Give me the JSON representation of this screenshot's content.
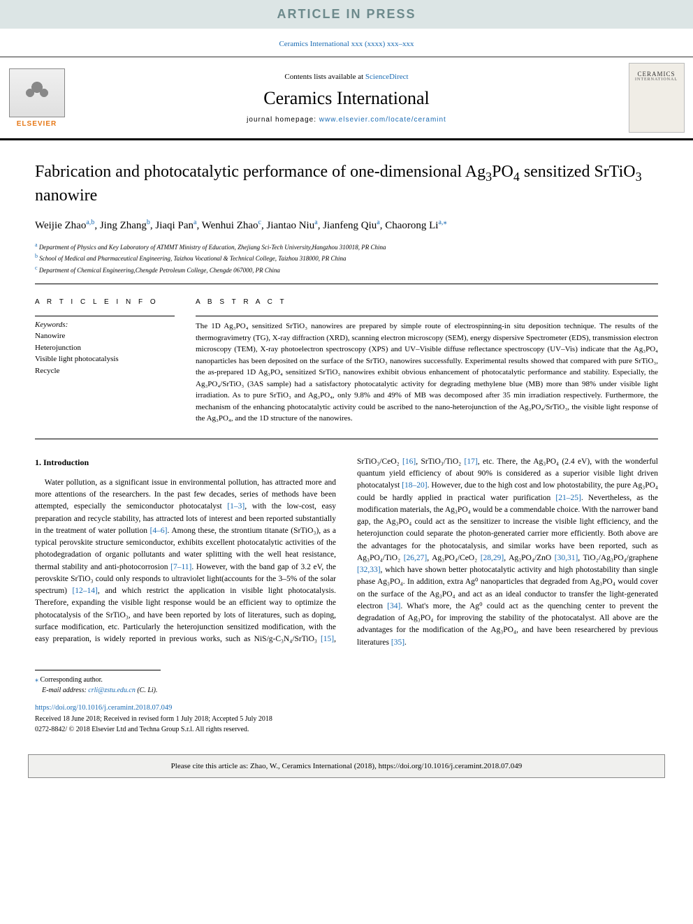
{
  "banner": {
    "text": "ARTICLE IN PRESS"
  },
  "journal_ref": "Ceramics International xxx (xxxx) xxx–xxx",
  "masthead": {
    "publisher": "ELSEVIER",
    "contents_prefix": "Contents lists available at ",
    "contents_link": "ScienceDirect",
    "journal": "Ceramics International",
    "homepage_prefix": "journal homepage: ",
    "homepage_url": "www.elsevier.com/locate/ceramint",
    "cover_line1": "CERAMICS",
    "cover_line2": "INTERNATIONAL"
  },
  "title_parts": {
    "p1": "Fabrication and photocatalytic performance of one-dimensional Ag",
    "p1_sub": "3",
    "p2": "PO",
    "p2_sub": "4",
    "p3": " sensitized SrTiO",
    "p3_sub": "3",
    "p4": " nanowire"
  },
  "authors": [
    {
      "name": "Weijie Zhao",
      "sup": "a,b"
    },
    {
      "name": "Jing Zhang",
      "sup": "b"
    },
    {
      "name": "Jiaqi Pan",
      "sup": "a"
    },
    {
      "name": "Wenhui Zhao",
      "sup": "c"
    },
    {
      "name": "Jiantao Niu",
      "sup": "a"
    },
    {
      "name": "Jianfeng Qiu",
      "sup": "a"
    },
    {
      "name": "Chaorong Li",
      "sup": "a,",
      "corr": true
    }
  ],
  "affiliations": [
    {
      "sup": "a",
      "text": "Department of Physics and Key Laboratory of ATMMT Ministry of Education, Zhejiang Sci-Tech University,Hangzhou 310018, PR China"
    },
    {
      "sup": "b",
      "text": "School of Medical and Pharmaceutical Engineering, Taizhou Vocational & Technical College, Taizhou 318000, PR China"
    },
    {
      "sup": "c",
      "text": "Department of Chemical Engineering,Chengde Petroleum College, Chengde 067000, PR China"
    }
  ],
  "info": {
    "label": "A R T I C L E  I N F O",
    "kw_head": "Keywords:",
    "keywords": [
      "Nanowire",
      "Heterojunction",
      "Visible light photocatalysis",
      "Recycle"
    ]
  },
  "abstract": {
    "label": "A B S T R A C T",
    "text": "The 1D Ag₃PO₄ sensitized SrTiO₃ nanowires are prepared by simple route of electrospinning-in situ deposition technique. The results of the thermogravimetry (TG), X-ray diffraction (XRD), scanning electron microscopy (SEM), energy dispersive Spectrometer (EDS), transmission electron microscopy (TEM), X-ray photoelectron spectroscopy (XPS) and UV–Visible diffuse reflectance spectroscopy (UV–Vis) indicate that the Ag₃PO₄ nanoparticles has been deposited on the surface of the SrTiO₃ nanowires successfully. Experimental results showed that compared with pure SrTiO₃, the as-prepared 1D Ag₃PO₄ sensitized SrTiO₃ nanowires exhibit obvious enhancement of photocatalytic performance and stability. Especially, the Ag₃PO₄/SrTiO₃ (3AS sample) had a satisfactory photocatalytic activity for degrading methylene blue (MB) more than 98% under visible light irradiation. As to pure SrTiO₃ and Ag₃PO₄, only 9.8% and 49% of MB was decomposed after 35 min irradiation respectively. Furthermore, the mechanism of the enhancing photocatalytic activity could be ascribed to the nano-heterojunction of the Ag₃PO₄/SrTiO₃, the visible light response of the Ag₃PO₄, and the 1D structure of the nanowires."
  },
  "intro": {
    "heading": "1. Introduction",
    "para1_a": "Water pollution, as a significant issue in environmental pollution, has attracted more and more attentions of the researchers. In the past few decades, series of methods have been attempted, especially the semiconductor photocatalyst ",
    "ref1": "[1–3]",
    "para1_b": ", with the low-cost, easy preparation and recycle stability, has attracted lots of interest and been reported substantially in the treatment of water pollution ",
    "ref2": "[4–6]",
    "para1_c": ". Among these, the strontium titanate (SrTiO₃), as a typical perovskite structure semiconductor, exhibits excellent photocatalytic activities of the photodegradation of organic pollutants and water splitting with the well heat resistance, thermal stability and anti-photocorrosion ",
    "ref3": "[7–11]",
    "para1_d": ". However, with the band gap of 3.2 eV, the perovskite SrTiO₃ could only responds to ultraviolet light(accounts for the 3–5% of the solar spectrum) ",
    "ref4": "[12–14]",
    "para1_e": ", and which restrict the application in visible light photocatalysis. Therefore, expanding the visible light response would be an efficient way to optimize the photocatalysis of the SrTiO₃, and have been reported by lots of literatures, such as doping, surface modification, etc. Particularly the heterojunction sensitized modification, with the easy preparation, is widely reported in previous works, such as NiS/",
    "para2_a": "g-C₃N₄/SrTiO₃ ",
    "ref5": "[15]",
    "para2_b": ", SrTiO₃/CeO₂ ",
    "ref6": "[16]",
    "para2_c": ", SrTiO₃/TiO₂ ",
    "ref7": "[17]",
    "para2_d": ", etc. There, the Ag₃PO₄ (2.4 eV), with the wonderful quantum yield efficiency of about 90% is considered as a superior visible light driven photocatalyst ",
    "ref8": "[18–20]",
    "para2_e": ". However, due to the high cost and low photostability, the pure Ag₃PO₄ could be hardly applied in practical water purification ",
    "ref9": "[21–25]",
    "para2_f": ". Nevertheless, as the modification materials, the Ag₃PO₄ would be a commendable choice. With the narrower band gap, the Ag₃PO₄ could act as the sensitizer to increase the visible light efficiency, and the heterojunction could separate the photon-generated carrier more efficiently. Both above are the advantages for the photocatalysis, and similar works have been reported, such as Ag₃PO₄/TiO₂ ",
    "ref10": "[26,27]",
    "para2_g": ", Ag₃PO₄/CeO₂ ",
    "ref11": "[28,29]",
    "para2_h": ", Ag₃PO₄/ZnO ",
    "ref12": "[30,31]",
    "para2_i": ", TiO₂/Ag₃PO₄/graphene ",
    "ref13": "[32,33]",
    "para2_j": ", which have shown better photocatalytic activity and high photostability than single phase Ag₃PO₄. In addition, extra Ag⁰ nanoparticles that degraded from Ag₃PO₄ would cover on the surface of the Ag₃PO₄ and act as an ideal conductor to transfer the light-generated electron ",
    "ref14": "[34]",
    "para2_k": ". What's more, the Ag⁰ could act as the quenching center to prevent the degradation of Ag₃PO₄ for improving the stability of the photocatalyst. All above are the advantages for the modification of the Ag₃PO₄, and have been researchered by previous literatures ",
    "ref15": "[35]",
    "para2_l": "."
  },
  "footer": {
    "corr_mark": "⁎",
    "corr_label": " Corresponding author.",
    "email_label": "E-mail address: ",
    "email": "crli@zstu.edu.cn",
    "email_suffix": " (C. Li).",
    "doi": "https://doi.org/10.1016/j.ceramint.2018.07.049",
    "received": "Received 18 June 2018; Received in revised form 1 July 2018; Accepted 5 July 2018",
    "issn": "0272-8842/ © 2018 Elsevier Ltd and Techna Group S.r.l. All rights reserved."
  },
  "cite_box": "Please cite this article as: Zhao, W., Ceramics International (2018), https://doi.org/10.1016/j.ceramint.2018.07.049",
  "colors": {
    "link": "#1a6bb3",
    "banner_bg": "#dce5e5",
    "banner_fg": "#6d8a8c",
    "elsevier_orange": "#e67817"
  }
}
